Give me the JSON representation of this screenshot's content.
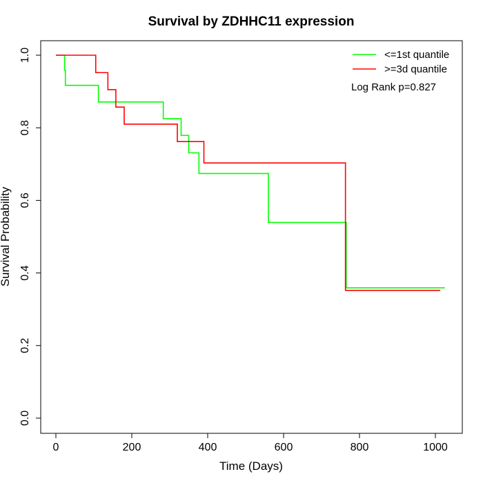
{
  "chart_data": {
    "type": "line",
    "title": "Survival by ZDHHC11 expression",
    "xlabel": "Time (Days)",
    "ylabel": "Survival Probability",
    "xlim": [
      0,
      1050
    ],
    "ylim": [
      0,
      1.0
    ],
    "xticks": [
      "0",
      "200",
      "400",
      "600",
      "800",
      "1000"
    ],
    "xtick_values": [
      0,
      200,
      400,
      600,
      800,
      1000
    ],
    "yticks": [
      "0.0",
      "0.2",
      "0.4",
      "0.6",
      "0.8",
      "1.0"
    ],
    "ytick_values": [
      0,
      0.2,
      0.4,
      0.6,
      0.8,
      1.0
    ],
    "grid": false,
    "legend_position": "top-right",
    "annotation": "Log Rank p=0.827",
    "series": [
      {
        "name": "<=1st quantile",
        "color": "#00ff00",
        "step": true,
        "points": [
          [
            0,
            1.0
          ],
          [
            23,
            0.958
          ],
          [
            25,
            0.917
          ],
          [
            112,
            0.871
          ],
          [
            283,
            0.825
          ],
          [
            330,
            0.779
          ],
          [
            350,
            0.731
          ],
          [
            377,
            0.674
          ],
          [
            560,
            0.539
          ],
          [
            765,
            0.359
          ],
          [
            1025,
            0.359
          ]
        ]
      },
      {
        "name": ">=3d quantile",
        "color": "#ff0000",
        "step": true,
        "points": [
          [
            0,
            1.0
          ],
          [
            105,
            0.952
          ],
          [
            137,
            0.905
          ],
          [
            158,
            0.857
          ],
          [
            180,
            0.81
          ],
          [
            320,
            0.762
          ],
          [
            390,
            0.703
          ],
          [
            763,
            0.352
          ],
          [
            1013,
            0.352
          ]
        ]
      }
    ]
  }
}
